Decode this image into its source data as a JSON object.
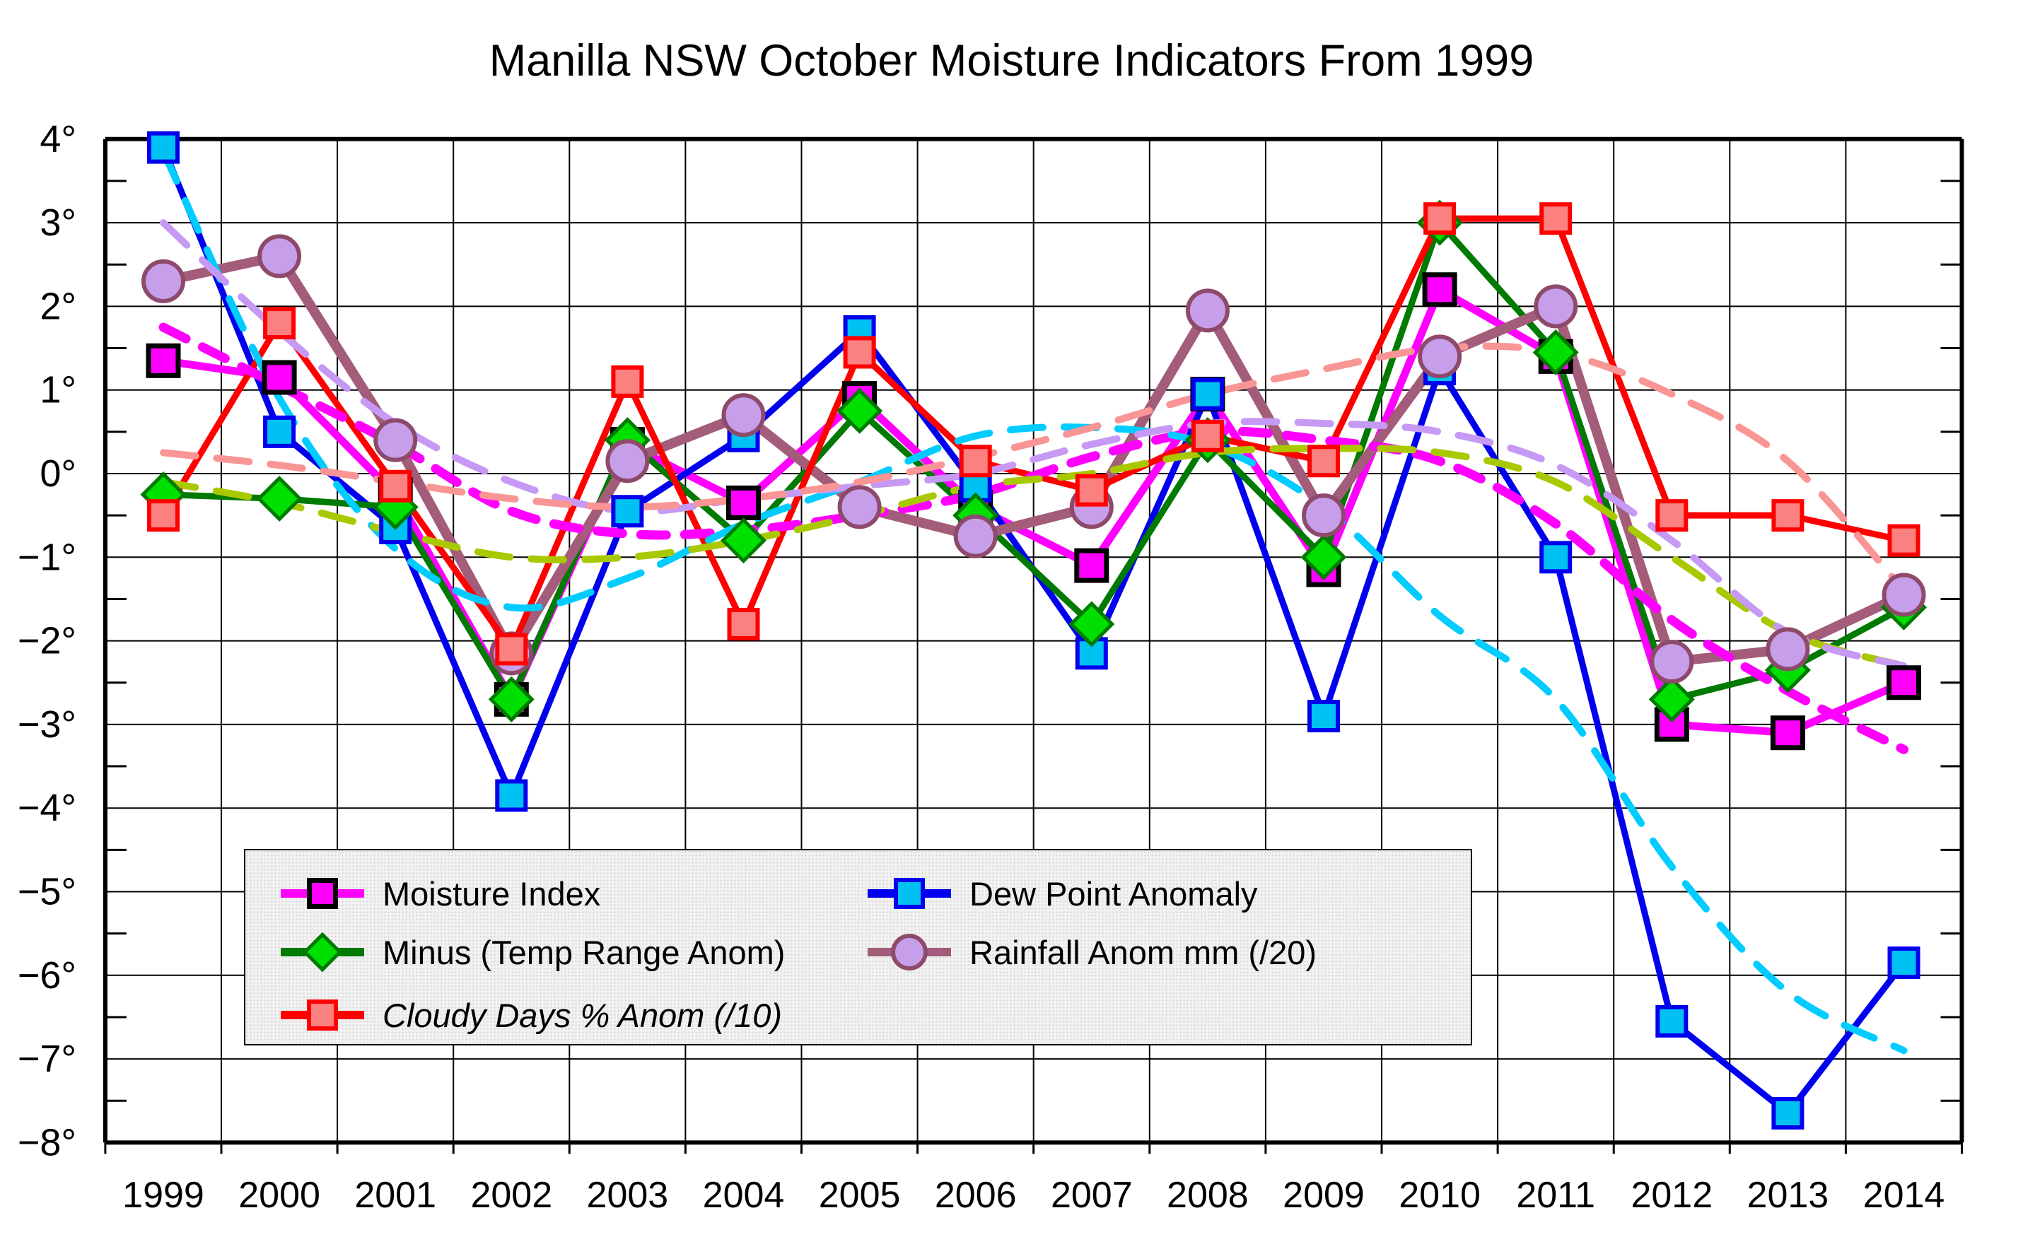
{
  "title": "Manilla NSW October Moisture Indicators From 1999",
  "chart_data": {
    "type": "line",
    "title": "Manilla NSW October Moisture Indicators From 1999",
    "x": [
      1999,
      2000,
      2001,
      2002,
      2003,
      2004,
      2005,
      2006,
      2007,
      2008,
      2009,
      2010,
      2011,
      2012,
      2013,
      2014
    ],
    "x_labels": [
      "1999",
      "2000",
      "2001",
      "2002",
      "2003",
      "2004",
      "2005",
      "2006",
      "2007",
      "2008",
      "2009",
      "2010",
      "2011",
      "2012",
      "2013",
      "2014"
    ],
    "ylim": [
      -8,
      4
    ],
    "y_ticks": [
      4,
      3,
      2,
      1,
      0,
      -1,
      -2,
      -3,
      -4,
      -5,
      -6,
      -7,
      -8
    ],
    "y_tick_labels": [
      "4°",
      "3°",
      "2°",
      "1°",
      "0°",
      "−1°",
      "−2°",
      "−3°",
      "−4°",
      "−5°",
      "−6°",
      "−7°",
      "−8°"
    ],
    "grid": "both, 1-degree and half-year black gridlines",
    "legend_position": "inside bottom-left",
    "series": [
      {
        "id": "moisture_index",
        "name": "Moisture Index",
        "marker": "square",
        "line_color": "#FF00FF",
        "line_width": 11,
        "marker_fill": "#FF00FF",
        "marker_stroke": "#000000",
        "marker_stroke_width": 7,
        "marker_size": 42,
        "values": [
          1.35,
          1.15,
          -0.25,
          -2.7,
          0.35,
          -0.35,
          0.9,
          -0.4,
          -1.1,
          0.95,
          -1.15,
          2.2,
          1.4,
          -3.0,
          -3.1,
          -2.5
        ]
      },
      {
        "id": "dew_point",
        "name": "Dew Point Anomaly",
        "marker": "square",
        "line_color": "#0000EE",
        "line_width": 9,
        "marker_fill": "#00C2F2",
        "marker_stroke": "#0000EE",
        "marker_stroke_width": 6,
        "marker_size": 40,
        "values": [
          3.9,
          0.5,
          -0.65,
          -3.85,
          -0.45,
          0.45,
          1.7,
          -0.15,
          -2.15,
          0.95,
          -2.9,
          1.25,
          -1.0,
          -6.55,
          -7.65,
          -5.85
        ]
      },
      {
        "id": "minus_temp_range",
        "name": "Minus (Temp Range Anom)",
        "marker": "diamond",
        "line_color": "#007A00",
        "line_width": 9,
        "marker_fill": "#00E000",
        "marker_stroke": "#007A00",
        "marker_stroke_width": 5,
        "marker_size": 58,
        "values": [
          -0.25,
          -0.3,
          -0.4,
          -2.7,
          0.4,
          -0.8,
          0.75,
          -0.5,
          -1.8,
          0.4,
          -1.0,
          3.0,
          1.45,
          -2.7,
          -2.35,
          -1.6
        ]
      },
      {
        "id": "rainfall_anom",
        "name": "Rainfall Anom mm (/20)",
        "marker": "circle",
        "line_color": "#A35C79",
        "line_width": 14,
        "marker_fill": "#C79EEA",
        "marker_stroke": "#8E4A6A",
        "marker_stroke_width": 6,
        "marker_size": 56,
        "values": [
          2.3,
          2.6,
          0.4,
          -2.15,
          0.15,
          0.7,
          -0.4,
          -0.75,
          -0.4,
          1.95,
          -0.5,
          1.4,
          2.0,
          -2.25,
          -2.1,
          -1.45
        ]
      },
      {
        "id": "cloudy_days",
        "name": "Cloudy Days % Anom (/10)",
        "marker": "square",
        "line_color": "#FF0000",
        "line_width": 9,
        "marker_fill": "#FB8080",
        "marker_stroke": "#FF0000",
        "marker_stroke_width": 6,
        "marker_size": 40,
        "label_style": "italic",
        "values": [
          -0.5,
          1.8,
          -0.15,
          -2.1,
          1.1,
          -1.8,
          1.45,
          0.15,
          -0.2,
          0.45,
          0.15,
          3.05,
          3.05,
          -0.5,
          -0.5,
          -0.8
        ]
      }
    ],
    "trendlines": [
      {
        "for": "moisture_index",
        "color": "#FF00FF",
        "width": 13,
        "dash": "36 26",
        "values": [
          1.75,
          1.05,
          0.35,
          -0.45,
          -0.72,
          -0.68,
          -0.5,
          -0.25,
          0.2,
          0.5,
          0.4,
          0.15,
          -0.6,
          -1.75,
          -2.6,
          -3.3
        ]
      },
      {
        "for": "dew_point",
        "color": "#00CCFF",
        "width": 10,
        "dash": "46 30",
        "values": [
          3.85,
          0.9,
          -0.9,
          -1.6,
          -1.25,
          -0.6,
          -0.1,
          0.45,
          0.55,
          0.35,
          -0.4,
          -1.7,
          -2.7,
          -4.7,
          -6.2,
          -6.9
        ]
      },
      {
        "for": "minus_temp_range",
        "color": "#AAC800",
        "width": 10,
        "dash": "46 30",
        "values": [
          -0.1,
          -0.35,
          -0.7,
          -1.0,
          -1.0,
          -0.8,
          -0.5,
          -0.15,
          0.0,
          0.25,
          0.3,
          0.25,
          -0.1,
          -1.0,
          -1.9,
          -2.3
        ]
      },
      {
        "for": "rainfall_anom",
        "color": "#C699F5",
        "width": 10,
        "dash": "46 30",
        "values": [
          3.0,
          1.7,
          0.6,
          -0.1,
          -0.45,
          -0.3,
          -0.15,
          0.0,
          0.35,
          0.6,
          0.6,
          0.5,
          0.1,
          -0.8,
          -1.9,
          -2.3
        ]
      },
      {
        "for": "cloudy_days",
        "color": "#F99595",
        "width": 10,
        "dash": "46 30",
        "values": [
          0.25,
          0.1,
          -0.1,
          -0.3,
          -0.4,
          -0.3,
          -0.1,
          0.2,
          0.55,
          0.95,
          1.25,
          1.5,
          1.45,
          0.95,
          0.15,
          -1.4
        ]
      }
    ]
  },
  "legend": {
    "items": [
      {
        "label": "Moisture Index"
      },
      {
        "label": "Dew Point Anomaly"
      },
      {
        "label": "Minus (Temp Range Anom)"
      },
      {
        "label": "Rainfall Anom mm (/20)"
      },
      {
        "label": "Cloudy Days % Anom (/10)"
      }
    ]
  }
}
